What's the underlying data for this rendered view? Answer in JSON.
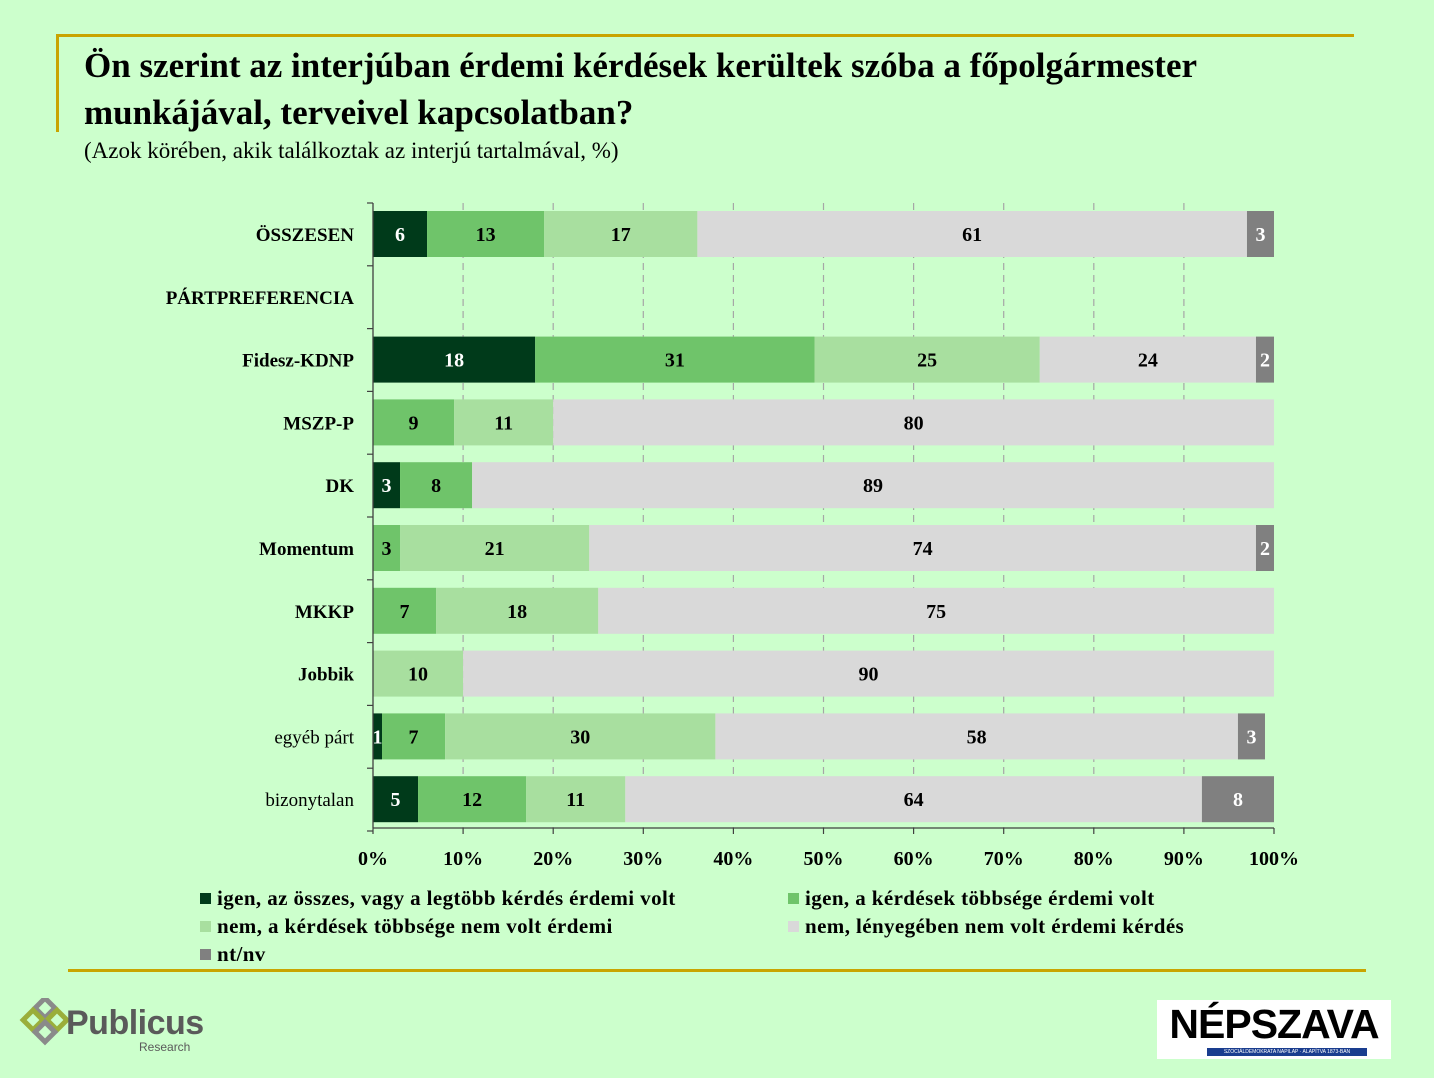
{
  "title": "Ön szerint az interjúban érdemi kérdések kerültek szóba a főpolgármester munkájával, terveivel kapcsolatban?",
  "subtitle": "(Azok körében, akik találkoztak az interjú tartalmával, %)",
  "chart_data": {
    "type": "bar",
    "orientation": "horizontal",
    "stacked": "percent",
    "categories": [
      "ÖSSZESEN",
      "PÁRTPREFERENCIA",
      "Fidesz-KDNP",
      "MSZP-P",
      "DK",
      "Momentum",
      "MKKP",
      "Jobbik",
      "egyéb párt",
      "bizonytalan"
    ],
    "category_bold": [
      true,
      true,
      true,
      true,
      true,
      true,
      true,
      true,
      false,
      false
    ],
    "series": [
      {
        "name": "igen, az összes, vagy a legtöbb kérdés érdemi volt",
        "color": "#003a1a",
        "values": [
          6,
          null,
          18,
          0,
          3,
          0,
          0,
          0,
          1,
          5
        ]
      },
      {
        "name": "igen, a kérdések többsége érdemi volt",
        "color": "#6fc46a",
        "values": [
          13,
          null,
          31,
          9,
          8,
          3,
          7,
          0,
          7,
          12
        ]
      },
      {
        "name": "nem, a kérdések többsége nem volt érdemi",
        "color": "#a8df9f",
        "values": [
          17,
          null,
          25,
          11,
          0,
          21,
          18,
          10,
          30,
          11
        ]
      },
      {
        "name": "nem, lényegében nem volt érdemi kérdés",
        "color": "#d9d9d9",
        "values": [
          61,
          null,
          24,
          80,
          89,
          74,
          75,
          90,
          58,
          64
        ]
      },
      {
        "name": "nt/nv",
        "color": "#808080",
        "values": [
          3,
          null,
          2,
          0,
          0,
          2,
          0,
          0,
          3,
          8
        ]
      }
    ],
    "label_colors": [
      "#ffffff",
      "#000000",
      "#000000",
      "#000000",
      "#ffffff"
    ],
    "x_ticks": [
      "0%",
      "10%",
      "20%",
      "30%",
      "40%",
      "50%",
      "60%",
      "70%",
      "80%",
      "90%",
      "100%"
    ],
    "xlim": [
      0,
      100
    ],
    "grid": true,
    "legend_position": "bottom"
  },
  "logos": {
    "publicus_name": "Publicus",
    "publicus_sub": "Research",
    "nepszava_name": "NÉPSZAVA",
    "nepszava_tagline": "SZOCIÁLDEMOKRATA NAPILAP · ALAPÍTVA 1873-BAN"
  }
}
